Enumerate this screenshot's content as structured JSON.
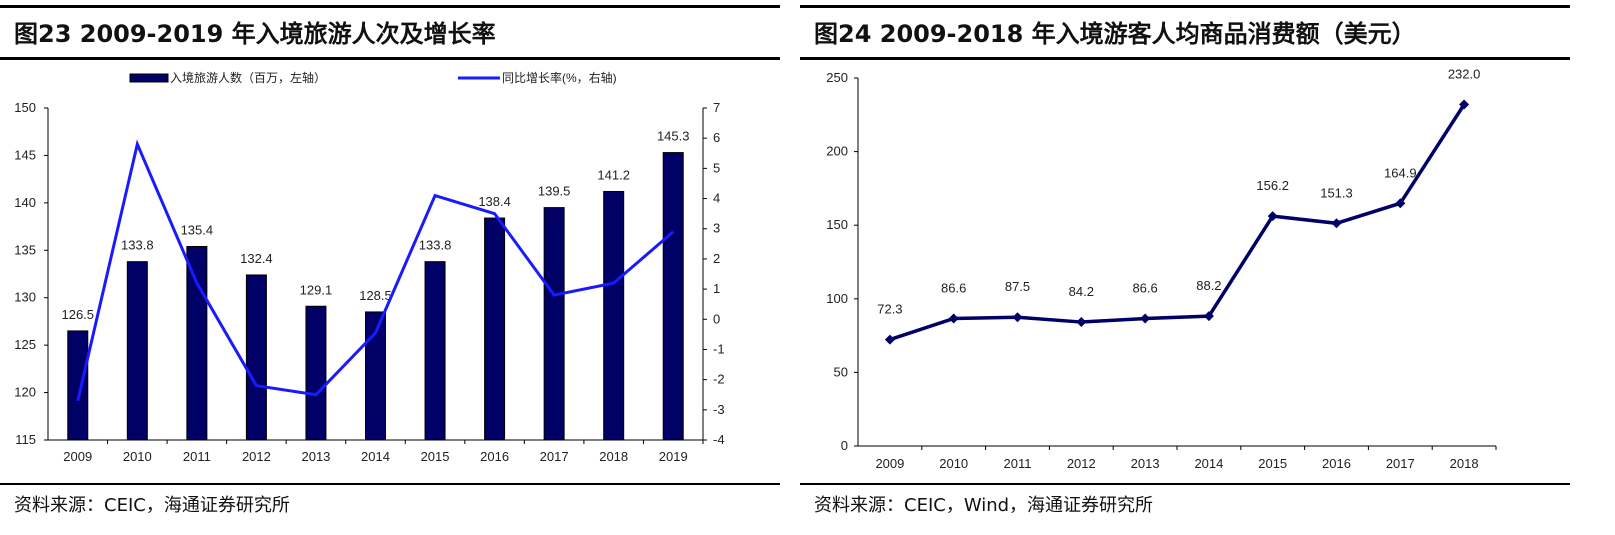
{
  "left": {
    "title": "图23 2009-2019 年入境旅游人次及增长率",
    "source": "资料来源：CEIC，海通证券研究所"
  },
  "right": {
    "title": "图24 2009-2018 年入境游客人均商品消费额（美元）",
    "source": "资料来源：CEIC，Wind，海通证券研究所"
  },
  "chart_data": [
    {
      "type": "bar+line",
      "categories": [
        "2009",
        "2010",
        "2011",
        "2012",
        "2013",
        "2014",
        "2015",
        "2016",
        "2017",
        "2018",
        "2019"
      ],
      "series": [
        {
          "name": "入境旅游人数（百万，左轴）",
          "type": "bar",
          "axis": "left",
          "color": "#000066",
          "values": [
            126.5,
            133.8,
            135.4,
            132.4,
            129.1,
            128.5,
            133.8,
            138.4,
            139.5,
            141.2,
            145.3
          ],
          "labels": [
            "126.5",
            "133.8",
            "135.4",
            "132.4",
            "129.1",
            "128.5",
            "133.8",
            "138.4",
            "139.5",
            "141.2",
            "145.3"
          ]
        },
        {
          "name": "同比增长率(%，右轴)",
          "type": "line",
          "axis": "right",
          "color": "#1a1aff",
          "values": [
            -2.7,
            5.8,
            1.2,
            -2.2,
            -2.5,
            -0.45,
            4.1,
            3.5,
            0.8,
            1.2,
            2.9
          ]
        }
      ],
      "ylim_left": [
        115,
        150
      ],
      "yticks_left": [
        "115",
        "120",
        "125",
        "130",
        "135",
        "140",
        "145",
        "150"
      ],
      "ylim_right": [
        -4,
        7
      ],
      "yticks_right": [
        "-4",
        "-3",
        "-2",
        "-1",
        "0",
        "1",
        "2",
        "3",
        "4",
        "5",
        "6",
        "7"
      ],
      "legend": "top",
      "grid": false
    },
    {
      "type": "line",
      "categories": [
        "2009",
        "2010",
        "2011",
        "2012",
        "2013",
        "2014",
        "2015",
        "2016",
        "2017",
        "2018"
      ],
      "series": [
        {
          "type": "line",
          "color": "#000066",
          "values": [
            72.3,
            86.6,
            87.5,
            84.2,
            86.6,
            88.2,
            156.2,
            151.3,
            164.9,
            232.0
          ],
          "labels": [
            "72.3",
            "86.6",
            "87.5",
            "84.2",
            "86.6",
            "88.2",
            "156.2",
            "151.3",
            "164.9",
            "232.0"
          ]
        }
      ],
      "ylim": [
        0,
        250
      ],
      "yticks": [
        "0",
        "50",
        "100",
        "150",
        "200",
        "250"
      ],
      "grid": false
    }
  ]
}
